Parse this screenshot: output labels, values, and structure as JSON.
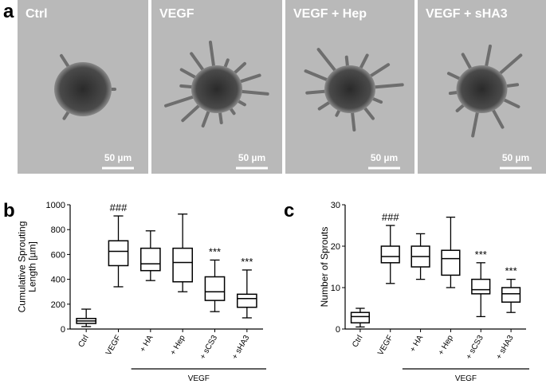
{
  "panel_labels": [
    "a",
    "b",
    "c"
  ],
  "images": [
    {
      "label": "Ctrl",
      "scale": "50 µm"
    },
    {
      "label": "VEGF",
      "scale": "50 µm"
    },
    {
      "label": "VEGF + Hep",
      "scale": "50 µm"
    },
    {
      "label": "VEGF + sHA3",
      "scale": "50 µm"
    }
  ],
  "chart_data": [
    {
      "type": "box",
      "ylabel": [
        "Cumulative Sprouting",
        "Length [µm]"
      ],
      "categories": [
        "Ctrl",
        "VEGF",
        "+ HA",
        "+ Hep",
        "+ sCS3",
        "+ sHA3"
      ],
      "boxes": [
        {
          "min": 20,
          "q1": 45,
          "median": 65,
          "q3": 85,
          "max": 160
        },
        {
          "min": 340,
          "q1": 510,
          "median": 625,
          "q3": 710,
          "max": 910
        },
        {
          "min": 390,
          "q1": 470,
          "median": 525,
          "q3": 650,
          "max": 790
        },
        {
          "min": 300,
          "q1": 380,
          "median": 535,
          "q3": 650,
          "max": 925
        },
        {
          "min": 140,
          "q1": 230,
          "median": 300,
          "q3": 420,
          "max": 555
        },
        {
          "min": 90,
          "q1": 175,
          "median": 245,
          "q3": 280,
          "max": 475
        }
      ],
      "significance": [
        null,
        "###",
        null,
        null,
        "***",
        "***"
      ],
      "group_label": "VEGF",
      "color": "#000000",
      "ylim": [
        0,
        1000
      ],
      "yticks": [
        0,
        200,
        400,
        600,
        800,
        1000
      ]
    },
    {
      "type": "box",
      "ylabel": [
        "Number of Sprouts"
      ],
      "categories": [
        "Ctrl",
        "VEGF",
        "+ HA",
        "+ Hep",
        "+ sCS3",
        "+ sHA3"
      ],
      "boxes": [
        {
          "min": 0.5,
          "q1": 1.5,
          "median": 3,
          "q3": 4,
          "max": 5
        },
        {
          "min": 11,
          "q1": 16,
          "median": 17.5,
          "q3": 20,
          "max": 25
        },
        {
          "min": 12,
          "q1": 15,
          "median": 17.5,
          "q3": 20,
          "max": 23
        },
        {
          "min": 10,
          "q1": 13,
          "median": 17,
          "q3": 19,
          "max": 27
        },
        {
          "min": 3,
          "q1": 8.5,
          "median": 9.5,
          "q3": 12,
          "max": 16
        },
        {
          "min": 4,
          "q1": 6.5,
          "median": 8.5,
          "q3": 10,
          "max": 12
        }
      ],
      "significance": [
        null,
        "###",
        null,
        null,
        "***",
        "***"
      ],
      "group_label": "VEGF",
      "color": "#000000",
      "ylim": [
        0,
        30
      ],
      "yticks": [
        0,
        10,
        20,
        30
      ]
    }
  ]
}
